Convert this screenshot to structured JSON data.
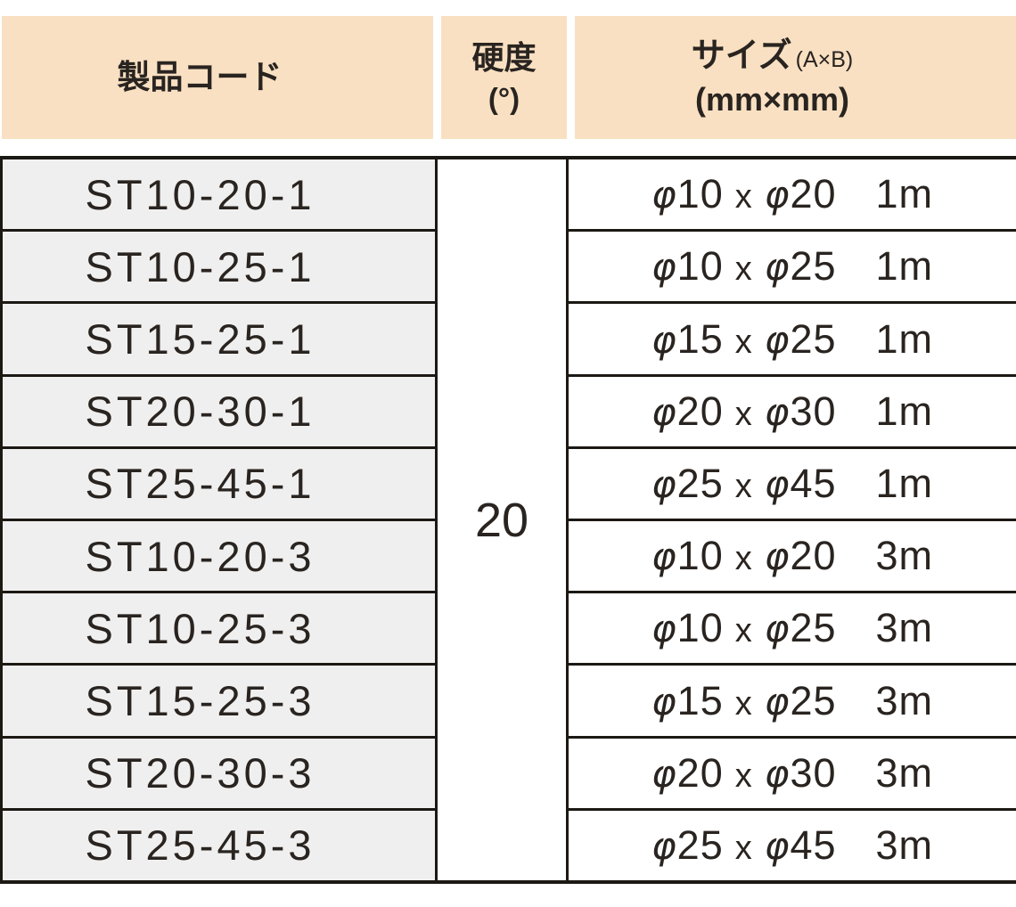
{
  "table": {
    "columns": {
      "product_code": {
        "title": "製品コード"
      },
      "hardness": {
        "title": "硬度",
        "unit": "(°)"
      },
      "size": {
        "title": "サイズ",
        "sub": "(A×B)",
        "unit": "(mm×mm)"
      }
    },
    "hardness_value": "20",
    "symbols": {
      "phi": "φ",
      "times": "x"
    },
    "rows": [
      {
        "code": "ST10-20-1",
        "size_a": "10",
        "size_b": "20",
        "length": "1m"
      },
      {
        "code": "ST10-25-1",
        "size_a": "10",
        "size_b": "25",
        "length": "1m"
      },
      {
        "code": "ST15-25-1",
        "size_a": "15",
        "size_b": "25",
        "length": "1m"
      },
      {
        "code": "ST20-30-1",
        "size_a": "20",
        "size_b": "30",
        "length": "1m"
      },
      {
        "code": "ST25-45-1",
        "size_a": "25",
        "size_b": "45",
        "length": "1m"
      },
      {
        "code": "ST10-20-3",
        "size_a": "10",
        "size_b": "20",
        "length": "3m"
      },
      {
        "code": "ST10-25-3",
        "size_a": "10",
        "size_b": "25",
        "length": "3m"
      },
      {
        "code": "ST15-25-3",
        "size_a": "15",
        "size_b": "25",
        "length": "3m"
      },
      {
        "code": "ST20-30-3",
        "size_a": "20",
        "size_b": "30",
        "length": "3m"
      },
      {
        "code": "ST25-45-3",
        "size_a": "25",
        "size_b": "45",
        "length": "3m"
      }
    ]
  },
  "colors": {
    "header_bg": "#F9E0C2",
    "row_bg": "#F0EFEF",
    "border": "#1C1814",
    "text": "#292420"
  }
}
